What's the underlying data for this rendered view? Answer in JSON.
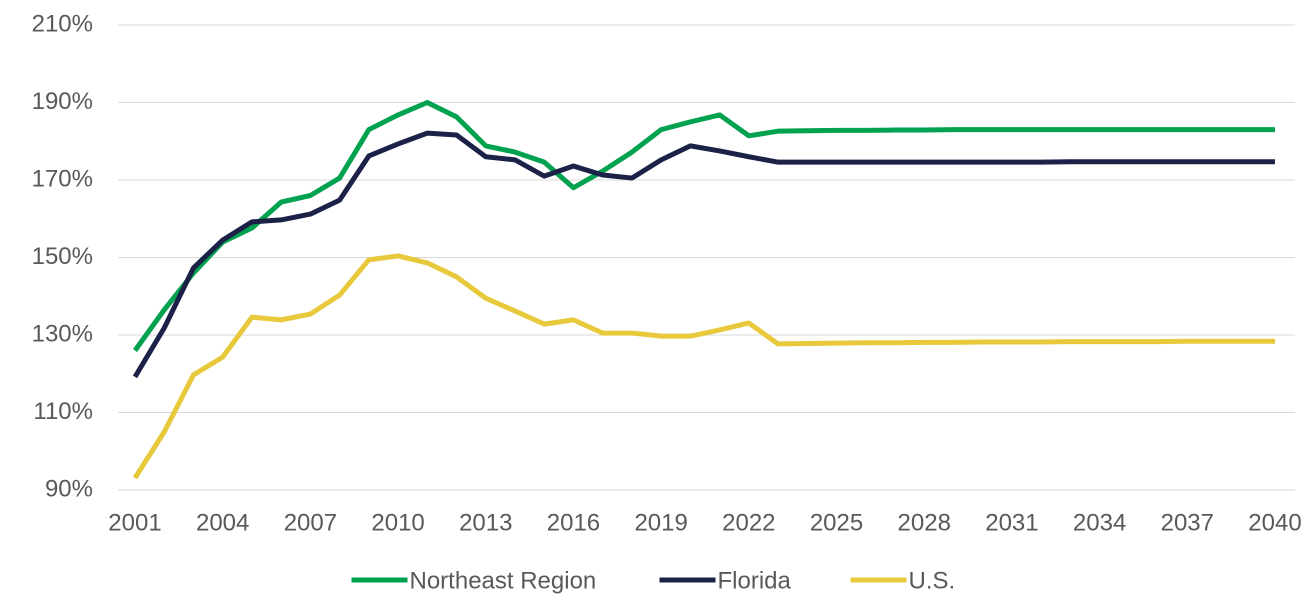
{
  "chart_data": {
    "type": "line",
    "x": [
      2001,
      2002,
      2003,
      2004,
      2005,
      2006,
      2007,
      2008,
      2009,
      2010,
      2011,
      2012,
      2013,
      2014,
      2015,
      2016,
      2017,
      2018,
      2019,
      2020,
      2021,
      2022,
      2023,
      2024,
      2025,
      2026,
      2027,
      2028,
      2029,
      2030,
      2031,
      2032,
      2033,
      2034,
      2035,
      2036,
      2037,
      2038,
      2039,
      2040
    ],
    "xlim": [
      2001,
      2040
    ],
    "xticks": [
      2001,
      2004,
      2007,
      2010,
      2013,
      2016,
      2019,
      2022,
      2025,
      2028,
      2031,
      2034,
      2037,
      2040
    ],
    "ylim": [
      90,
      210
    ],
    "yticks": [
      {
        "value": 90,
        "label": "90%"
      },
      {
        "value": 110,
        "label": "110%"
      },
      {
        "value": 130,
        "label": "130%"
      },
      {
        "value": 150,
        "label": "150%"
      },
      {
        "value": 170,
        "label": "170%"
      },
      {
        "value": 190,
        "label": "190%"
      },
      {
        "value": 210,
        "label": "210%"
      }
    ],
    "grid": true,
    "legend": "bottom",
    "series": [
      {
        "name": "Northeast Region",
        "color": "#00a24f",
        "values": [
          126,
          136.5,
          146,
          154,
          157.6,
          164.3,
          166,
          170.5,
          183,
          186.8,
          190,
          186.3,
          178.8,
          177.2,
          174.6,
          168,
          172.3,
          177.2,
          183,
          185,
          186.8,
          181.4,
          182.6,
          182.7,
          182.8,
          182.8,
          182.9,
          182.9,
          183,
          183,
          183,
          183,
          183,
          183,
          183,
          183,
          183,
          183,
          183,
          183
        ]
      },
      {
        "name": "Florida",
        "color": "#1c2148",
        "values": [
          119.2,
          131.8,
          147.3,
          154.5,
          159.2,
          159.7,
          161.2,
          164.8,
          176.2,
          179.3,
          182.1,
          181.6,
          176,
          175.2,
          171,
          173.6,
          171.3,
          170.5,
          175.2,
          178.8,
          177.5,
          176,
          174.6,
          174.6,
          174.6,
          174.6,
          174.6,
          174.6,
          174.6,
          174.6,
          174.6,
          174.6,
          174.7,
          174.7,
          174.7,
          174.7,
          174.7,
          174.7,
          174.7,
          174.7
        ]
      },
      {
        "name": "U.S.",
        "color": "#e8c93c",
        "values": [
          93.1,
          105,
          119.7,
          124.3,
          134.6,
          133.9,
          135.4,
          140.3,
          149.4,
          150.4,
          148.6,
          145,
          139.5,
          136.2,
          132.8,
          133.9,
          130.5,
          130.5,
          129.7,
          129.7,
          131.3,
          133.1,
          127.7,
          127.8,
          127.9,
          128,
          128,
          128.1,
          128.1,
          128.2,
          128.2,
          128.2,
          128.3,
          128.3,
          128.3,
          128.3,
          128.4,
          128.4,
          128.4,
          128.4
        ]
      }
    ]
  }
}
